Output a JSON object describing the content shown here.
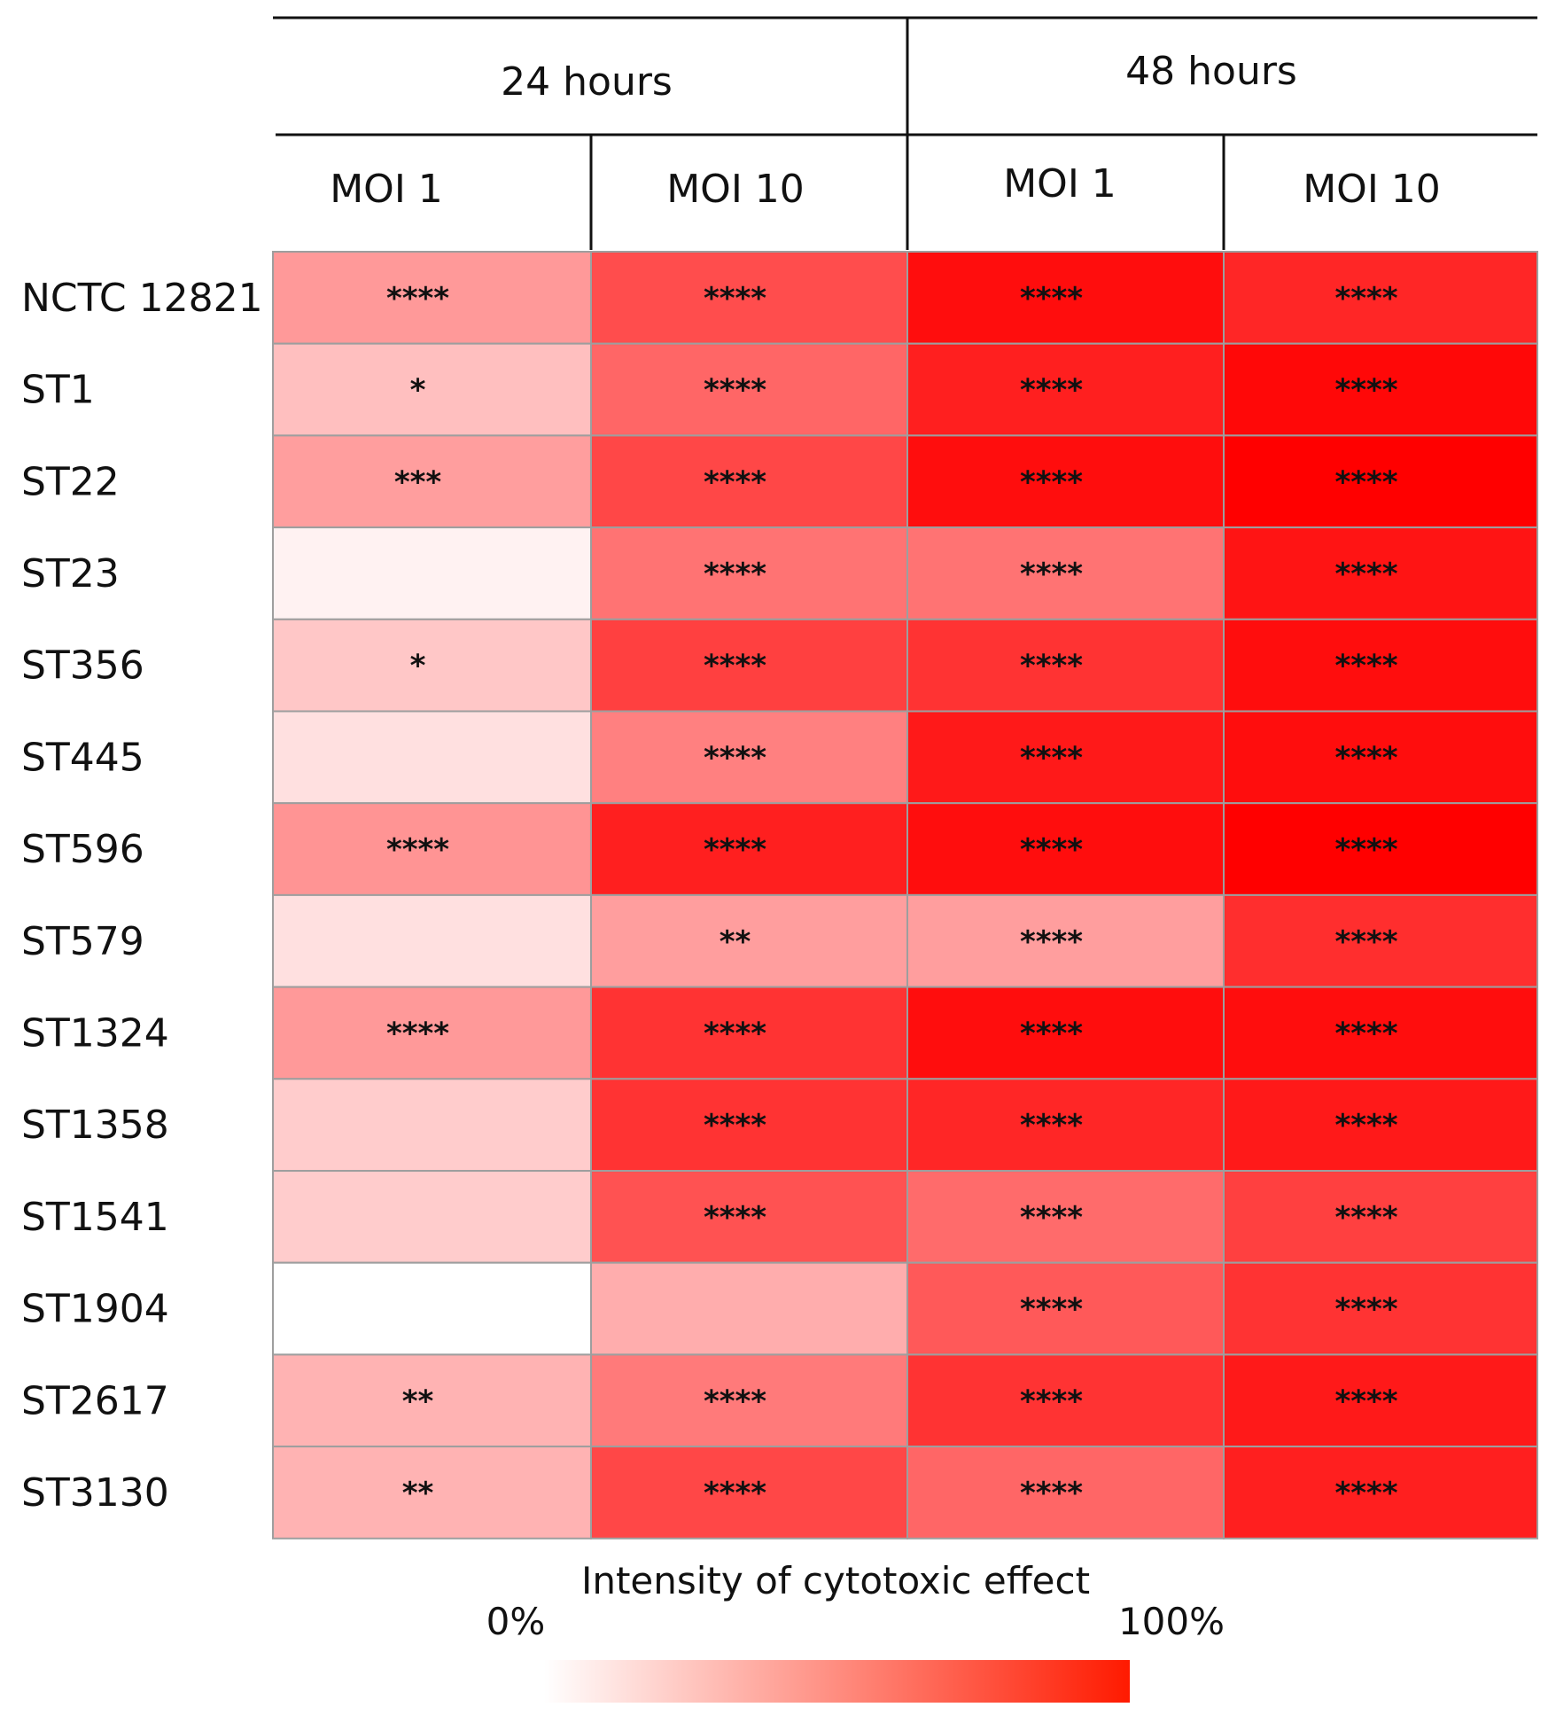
{
  "chart_data": {
    "type": "heatmap",
    "title": "",
    "column_groups": [
      {
        "label": "24 hours",
        "columns": [
          "MOI 1",
          "MOI 10"
        ]
      },
      {
        "label": "48 hours",
        "columns": [
          "MOI 1",
          "MOI 10"
        ]
      }
    ],
    "rows": [
      "NCTC 12821",
      "ST1",
      "ST22",
      "ST23",
      "ST356",
      "ST445",
      "ST596",
      "ST579",
      "ST1324",
      "ST1358",
      "ST1541",
      "ST1904",
      "ST2617",
      "ST3130"
    ],
    "values": [
      [
        40,
        70,
        95,
        85
      ],
      [
        25,
        60,
        88,
        97
      ],
      [
        38,
        72,
        95,
        100
      ],
      [
        5,
        55,
        55,
        92
      ],
      [
        22,
        75,
        80,
        95
      ],
      [
        12,
        50,
        90,
        95
      ],
      [
        42,
        88,
        95,
        100
      ],
      [
        12,
        38,
        38,
        82
      ],
      [
        40,
        80,
        95,
        95
      ],
      [
        20,
        80,
        85,
        90
      ],
      [
        20,
        68,
        58,
        75
      ],
      [
        0,
        32,
        65,
        80
      ],
      [
        30,
        52,
        80,
        90
      ],
      [
        30,
        72,
        60,
        88
      ]
    ],
    "significance": [
      [
        "****",
        "****",
        "****",
        "****"
      ],
      [
        "*",
        "****",
        "****",
        "****"
      ],
      [
        "***",
        "****",
        "****",
        "****"
      ],
      [
        "",
        "****",
        "****",
        "****"
      ],
      [
        "*",
        "****",
        "****",
        "****"
      ],
      [
        "",
        "****",
        "****",
        "****"
      ],
      [
        "****",
        "****",
        "****",
        "****"
      ],
      [
        "",
        "**",
        "****",
        "****"
      ],
      [
        "****",
        "****",
        "****",
        "****"
      ],
      [
        "",
        "****",
        "****",
        "****"
      ],
      [
        "",
        "****",
        "****",
        "****"
      ],
      [
        "",
        "",
        "****",
        "****"
      ],
      [
        "**",
        "****",
        "****",
        "****"
      ],
      [
        "**",
        "****",
        "****",
        "****"
      ]
    ],
    "value_range": [
      0,
      100
    ],
    "colorscale": {
      "low": "#ffffff",
      "high": "#ff0000"
    },
    "legend": {
      "title": "Intensity of cytotoxic effect",
      "min_label": "0%",
      "max_label": "100%",
      "placement": "bottom-center"
    }
  }
}
